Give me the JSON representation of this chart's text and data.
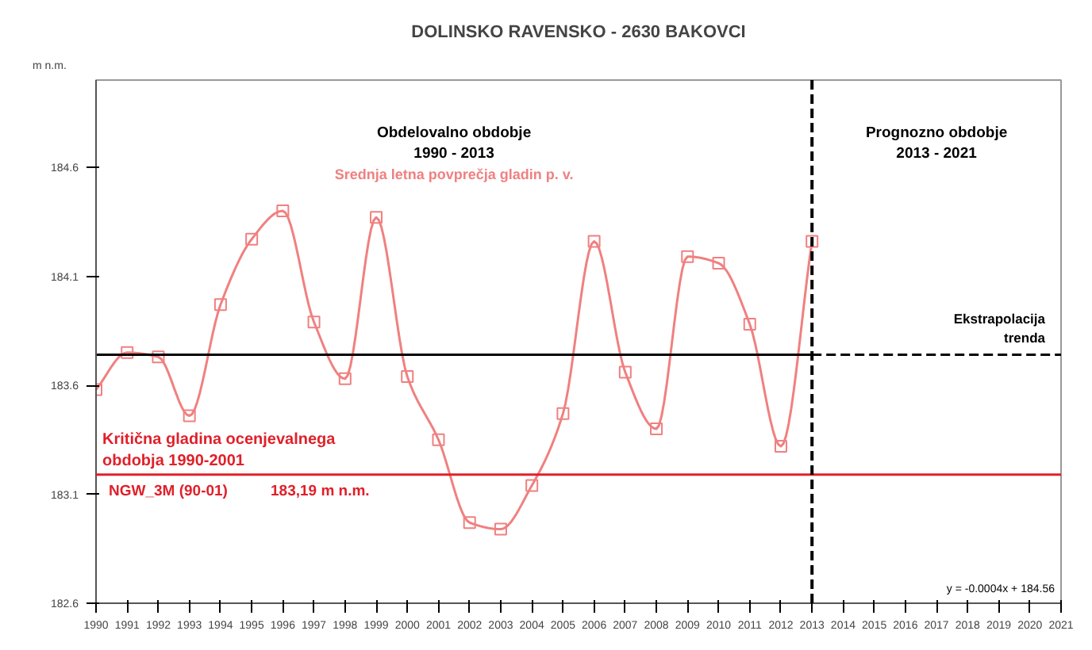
{
  "chart_data": {
    "type": "line",
    "title": "DOLINSKO RAVENSKO - 2630 BAKOVCI",
    "ylabel": "m n.m.",
    "x": [
      1990,
      1991,
      1992,
      1993,
      1994,
      1995,
      1996,
      1997,
      1998,
      1999,
      2000,
      2001,
      2002,
      2003,
      2004,
      2005,
      2006,
      2007,
      2008,
      2009,
      2010,
      2011,
      2012,
      2013
    ],
    "series": [
      {
        "name": "Srednja letna povprečja gladin p. v.",
        "color": "#f08080",
        "marker": "square",
        "values": [
          183.58,
          183.75,
          183.73,
          183.46,
          183.97,
          184.27,
          184.4,
          183.89,
          183.63,
          184.37,
          183.64,
          183.35,
          182.97,
          182.94,
          183.14,
          183.47,
          184.26,
          183.66,
          183.4,
          184.19,
          184.16,
          183.88,
          183.32,
          184.26
        ]
      },
      {
        "color": "#000000",
        "x": [
          1990,
          2013
        ],
        "values": [
          183.74,
          183.74
        ],
        "line_style": "solid",
        "marker": "none"
      },
      {
        "color": "#000000",
        "x": [
          2013,
          2021
        ],
        "values": [
          183.74,
          183.74
        ],
        "line_style": "dashed",
        "marker": "none"
      }
    ],
    "ref_lines": [
      {
        "axis": "y",
        "value": 183.19,
        "color": "#e0202a",
        "line_style": "solid",
        "label": "Kritična gladina ocenjevalnega\nobdobja 1990-2001"
      },
      {
        "axis": "x",
        "value": 2013,
        "color": "#000000",
        "line_style": "dashed"
      }
    ],
    "annotations": [
      "Obdelovalno obdobje\n1990 - 2013",
      "Prognozno obdobje\n2013 - 2021",
      "Ekstrapolacija\ntrenda",
      "NGW_3M (90-01)",
      "183,19 m n.m.",
      "y = -0.0004x + 184.56"
    ],
    "xlim": [
      1990,
      2021
    ],
    "ylim": [
      182.6,
      185.0
    ],
    "xticks": [
      1990,
      1991,
      1992,
      1993,
      1994,
      1995,
      1996,
      1997,
      1998,
      1999,
      2000,
      2001,
      2002,
      2003,
      2004,
      2005,
      2006,
      2007,
      2008,
      2009,
      2010,
      2011,
      2012,
      2013,
      2014,
      2015,
      2016,
      2017,
      2018,
      2019,
      2020,
      2021
    ],
    "yticks": [
      182.6,
      183.1,
      183.6,
      184.1,
      184.6
    ],
    "grid": false,
    "legend": false
  }
}
